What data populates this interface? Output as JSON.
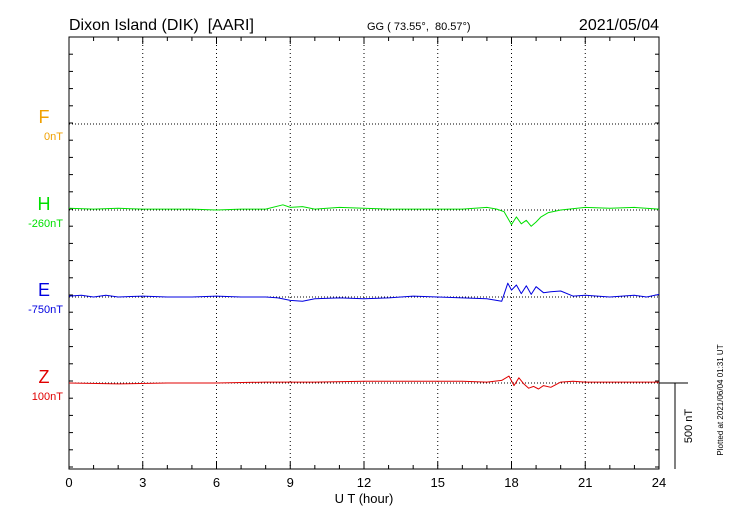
{
  "header": {
    "station": "Dixon Island (DIK)  [AARI]",
    "coords": "GG ( 73.55°,  80.57°)",
    "date": "2021/05/04"
  },
  "footer_note": "Plotted at 2021/06/04 01:31  UT",
  "scale_label": "500 nT",
  "chart_data": {
    "type": "line",
    "xlabel": "U T (hour)",
    "xlim": [
      0,
      24
    ],
    "x_ticks": [
      "0",
      "3",
      "6",
      "9",
      "12",
      "15",
      "18",
      "21",
      "24"
    ],
    "series": [
      {
        "name": "F",
        "offset_label": "0nT",
        "color": "#f0a000",
        "x": [],
        "y": []
      },
      {
        "name": "H",
        "offset_label": "-260nT",
        "color": "#00e000",
        "x": [
          0,
          1,
          2,
          3,
          4,
          5,
          6,
          7,
          8,
          8.7,
          9,
          9.5,
          10,
          11,
          12,
          13,
          14,
          15,
          16,
          17,
          17.4,
          17.7,
          17.9,
          18.0,
          18.2,
          18.4,
          18.6,
          18.8,
          19.0,
          19.2,
          19.5,
          20,
          21,
          22,
          23,
          24
        ],
        "y": [
          10,
          5,
          10,
          5,
          5,
          5,
          0,
          5,
          5,
          30,
          15,
          20,
          5,
          15,
          10,
          5,
          5,
          5,
          5,
          15,
          5,
          -10,
          -60,
          -85,
          -40,
          -80,
          -60,
          -95,
          -70,
          -40,
          -15,
          0,
          15,
          10,
          15,
          5
        ]
      },
      {
        "name": "E",
        "offset_label": "-750nT",
        "color": "#0000e0",
        "x": [
          0,
          0.5,
          1,
          1.5,
          2,
          3,
          4,
          5,
          6,
          7,
          8,
          8.5,
          9,
          9.5,
          10,
          11,
          12,
          13,
          14,
          15,
          16,
          17,
          17.6,
          17.85,
          18.0,
          18.2,
          18.4,
          18.6,
          18.8,
          19.0,
          19.3,
          19.6,
          20,
          20.5,
          21,
          22,
          23,
          23.5,
          24
        ],
        "y": [
          5,
          10,
          0,
          10,
          0,
          5,
          0,
          0,
          5,
          0,
          0,
          -5,
          -20,
          -25,
          -10,
          -5,
          -10,
          -5,
          5,
          0,
          -5,
          -10,
          -25,
          80,
          40,
          70,
          20,
          65,
          15,
          60,
          25,
          30,
          35,
          5,
          10,
          0,
          10,
          0,
          15
        ]
      },
      {
        "name": "Z",
        "offset_label": "100nT",
        "color": "#e00000",
        "x": [
          0,
          2,
          4,
          6,
          8,
          9,
          10,
          12,
          14,
          16,
          17,
          17.6,
          17.9,
          18.1,
          18.3,
          18.5,
          18.7,
          18.9,
          19.1,
          19.3,
          19.6,
          20,
          20.5,
          21,
          22,
          23,
          24
        ],
        "y": [
          0,
          -5,
          0,
          0,
          5,
          5,
          5,
          10,
          10,
          10,
          5,
          15,
          40,
          -15,
          30,
          -5,
          -30,
          -20,
          -35,
          -15,
          -25,
          5,
          10,
          5,
          5,
          5,
          5
        ]
      }
    ]
  }
}
